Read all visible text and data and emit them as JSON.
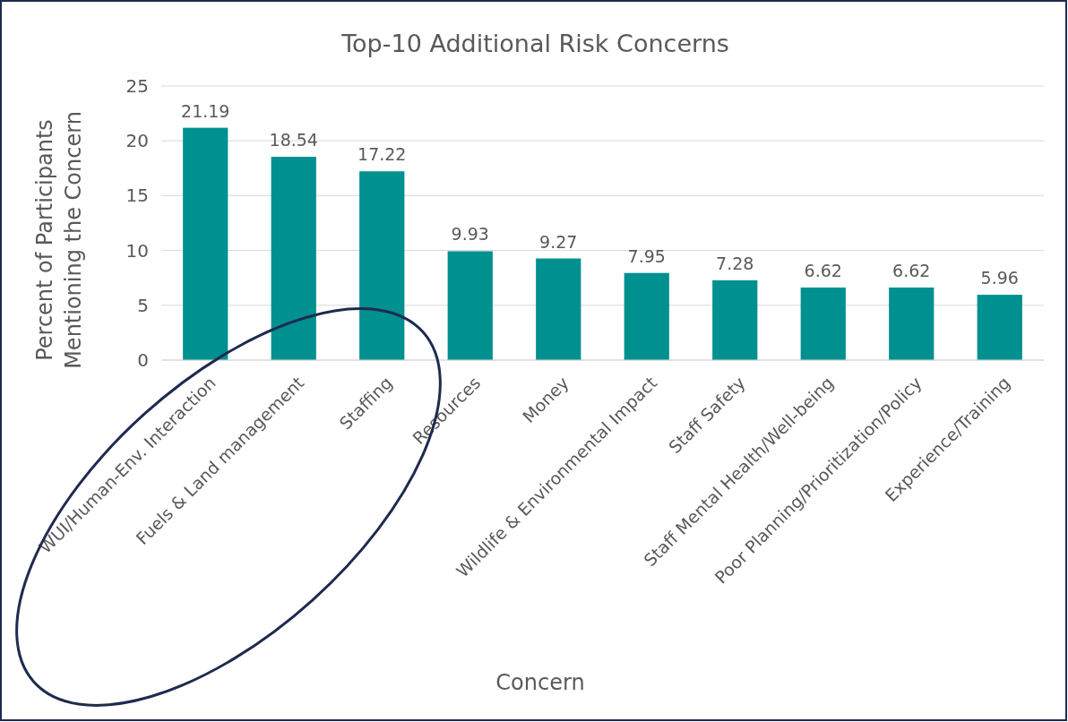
{
  "chart_data": {
    "type": "bar",
    "title": "Top-10 Additional Risk Concerns",
    "xlabel": "Concern",
    "ylabel": "Percent of Participants Mentioning the Concern",
    "categories": [
      "WUI/Human-Env. Interaction",
      "Fuels & Land management",
      "Staffing",
      "Resources",
      "Money",
      "Wildlife & Environmental Impact",
      "Staff Safety",
      "Staff Mental Health/Well-being",
      "Poor Planning/Prioritization/Policy",
      "Experience/Training"
    ],
    "values": [
      21.19,
      18.54,
      17.22,
      9.93,
      9.27,
      7.95,
      7.28,
      6.62,
      6.62,
      5.96
    ],
    "color": "#009090",
    "ylim": [
      0,
      25
    ],
    "yticks": [
      0,
      5,
      10,
      15,
      20,
      25
    ],
    "grid": "y",
    "data_labels": true
  }
}
